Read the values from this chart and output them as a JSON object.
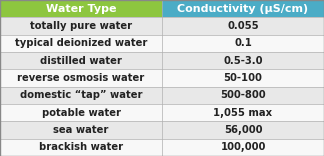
{
  "header": [
    "Water Type",
    "Conductivity (μS/cm)"
  ],
  "rows": [
    [
      "totally pure water",
      "0.055"
    ],
    [
      "typical deionized water",
      "0.1"
    ],
    [
      "distilled water",
      "0.5-3.0"
    ],
    [
      "reverse osmosis water",
      "50-100"
    ],
    [
      "domestic “tap” water",
      "500-800"
    ],
    [
      "potable water",
      "1,055 max"
    ],
    [
      "sea water",
      "56,000"
    ],
    [
      "brackish water",
      "100,000"
    ]
  ],
  "header_bg_left": "#8dc63f",
  "header_bg_right": "#4bacc6",
  "header_text_color": "#ffffff",
  "row_bg_even": "#e8e8e8",
  "row_bg_odd": "#f8f8f8",
  "row_text_color": "#222222",
  "border_color": "#b0b0b0",
  "col_split": 0.5,
  "header_fontsize": 8.0,
  "row_fontsize": 7.2,
  "table_outline_color": "#888888",
  "fig_width": 3.24,
  "fig_height": 1.56,
  "dpi": 100
}
